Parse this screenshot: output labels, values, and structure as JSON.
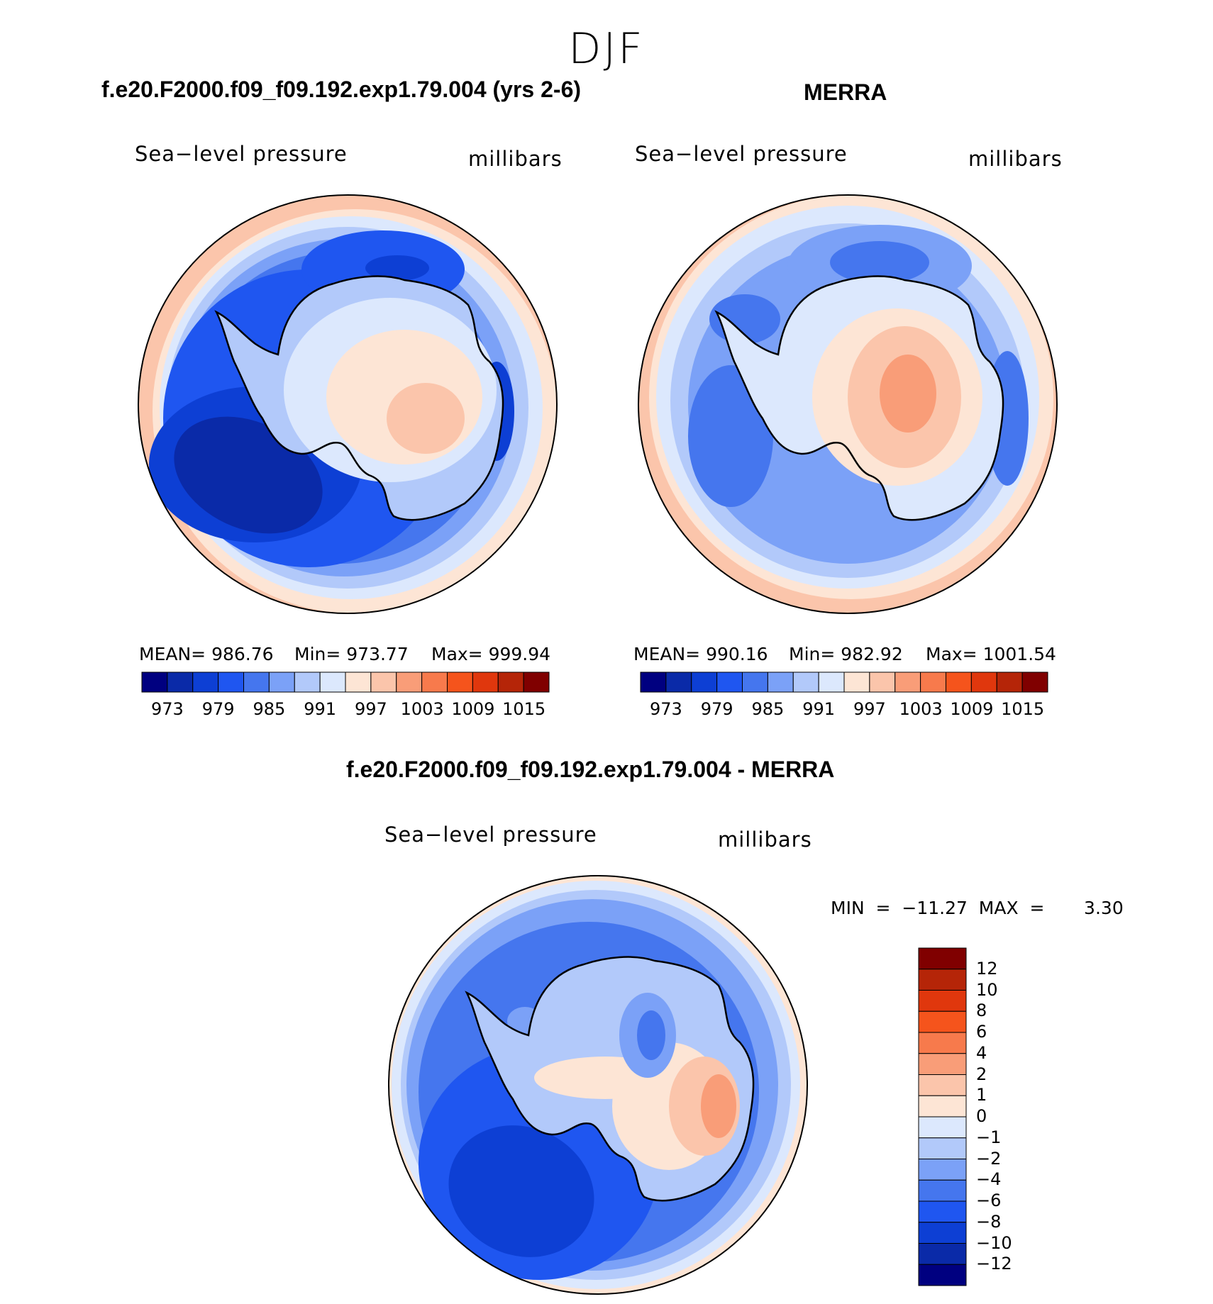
{
  "title": "DJF",
  "panel_left": {
    "title": "f.e20.F2000.f09_f09.192.exp1.79.004 (yrs 2-6)",
    "left_label": "Sea−level pressure",
    "right_label": "millibars",
    "stats": {
      "mean": "MEAN=  986.76",
      "min": "Min=  973.77",
      "max": "Max=  999.94"
    },
    "colorbar_ticks": [
      "973",
      "979",
      "985",
      "991",
      "997",
      "1003",
      "1009",
      "1015"
    ]
  },
  "panel_right": {
    "title": "MERRA",
    "left_label": "Sea−level pressure",
    "right_label": "millibars",
    "stats": {
      "mean": "MEAN=  990.16",
      "min": "Min=  982.92",
      "max": "Max=  1001.54"
    },
    "colorbar_ticks": [
      "973",
      "979",
      "985",
      "991",
      "997",
      "1003",
      "1009",
      "1015"
    ]
  },
  "panel_diff": {
    "title": "f.e20.F2000.f09_f09.192.exp1.79.004 - MERRA",
    "left_label": "Sea−level pressure",
    "right_label": "millibars",
    "minmax": "MIN  =  −11.27  MAX  =       3.30",
    "colorbar_ticks": [
      "12",
      "10",
      "8",
      "6",
      "4",
      "2",
      "1",
      "0",
      "−1",
      "−2",
      "−4",
      "−6",
      "−8",
      "−10",
      "−12"
    ]
  },
  "colors": {
    "abs_scale": [
      "#000080",
      "#0a2aa8",
      "#0d3fd4",
      "#1f56f0",
      "#4576ee",
      "#7ba1f7",
      "#b2c9fa",
      "#dce8fd",
      "#fde5d5",
      "#fbc5ab",
      "#f99d78",
      "#f77a4c",
      "#f5541c",
      "#e0370d",
      "#b52508",
      "#800000"
    ],
    "diff_scale": [
      "#800000",
      "#b52508",
      "#e0370d",
      "#f5541c",
      "#f77a4c",
      "#f99d78",
      "#fbc5ab",
      "#fde5d5",
      "#dce8fd",
      "#b2c9fa",
      "#7ba1f7",
      "#4576ee",
      "#1f56f0",
      "#0d3fd4",
      "#0a2aa8",
      "#000080"
    ]
  }
}
